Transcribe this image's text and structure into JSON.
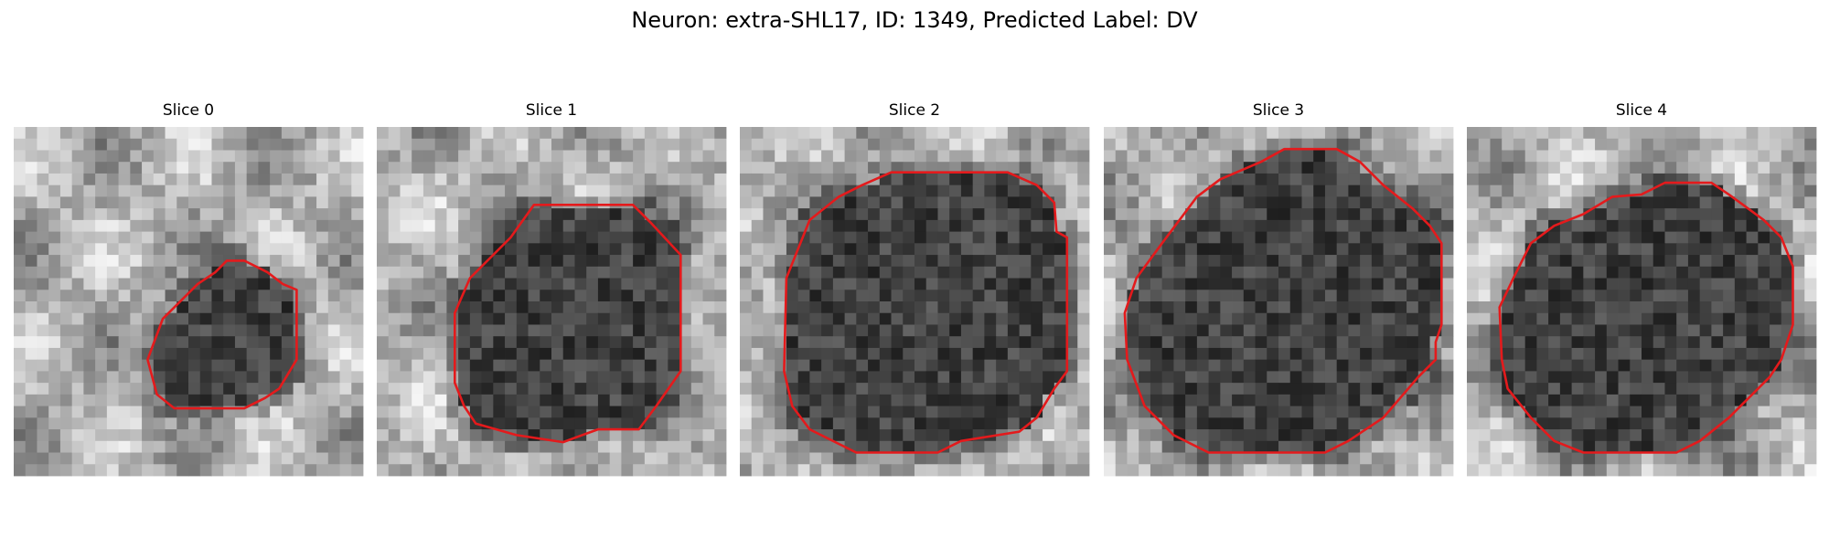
{
  "title": "Neuron: extra-SHL17, ID: 1349, Predicted Label: DV",
  "panels": [
    {
      "title": "Slice 0"
    },
    {
      "title": "Slice 1"
    },
    {
      "title": "Slice 2"
    },
    {
      "title": "Slice 3"
    },
    {
      "title": "Slice 4"
    }
  ]
}
